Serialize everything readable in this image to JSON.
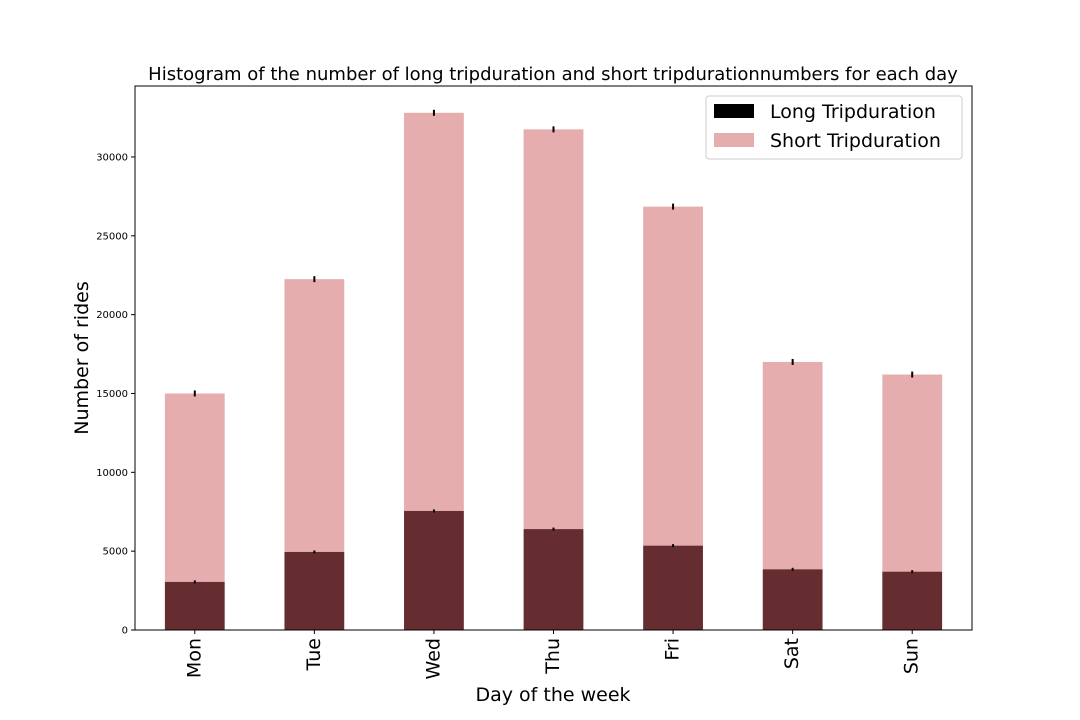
{
  "chart_data": {
    "type": "bar",
    "stacked": true,
    "title": "Histogram of the number of long tripduration and short tripdurationnumbers for each day",
    "xlabel": "Day of the week",
    "ylabel": "Number of rides",
    "categories": [
      "Mon",
      "Tue",
      "Wed",
      "Thu",
      "Fri",
      "Sat",
      "Sun"
    ],
    "series": [
      {
        "name": "Long Tripduration",
        "values": [
          3050,
          4950,
          7550,
          6400,
          5350,
          3850,
          3700
        ],
        "color": "#000000"
      },
      {
        "name": "Short Tripduration",
        "values": [
          11950,
          17300,
          25250,
          25350,
          21500,
          13150,
          12500
        ],
        "color": "#e5adae"
      }
    ],
    "overlap_color": "#662d30",
    "ylim": [
      0,
      34500
    ],
    "yticks": [
      0,
      5000,
      10000,
      15000,
      20000,
      25000,
      30000
    ],
    "legend_position": "top-right",
    "grid": false
  }
}
